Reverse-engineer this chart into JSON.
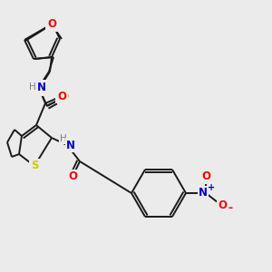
{
  "background_color": "#ebebeb",
  "bond_color": "#1a1a1a",
  "atom_colors": {
    "O": "#ff0000",
    "N": "#0000cc",
    "S": "#cccc00",
    "H": "#7f7f7f"
  },
  "figsize": [
    3.0,
    3.0
  ],
  "dpi": 100
}
